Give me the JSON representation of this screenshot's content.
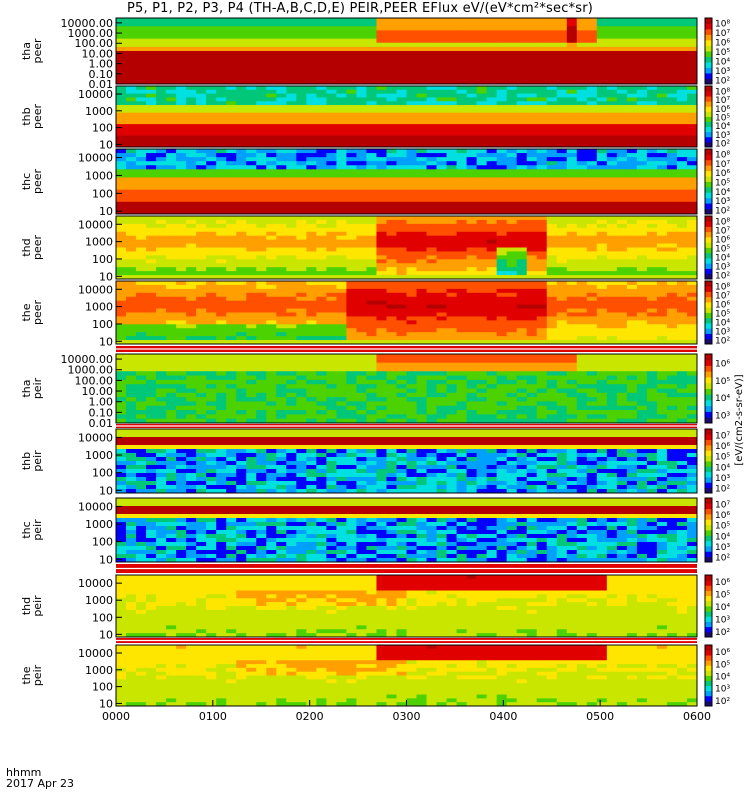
{
  "title": "P5, P1, P2, P3, P4 (TH-A,B,C,D,E) PEIR,PEER EFlux eV/(eV*cm²*sec*sr)",
  "footer": {
    "xlabel_line1": "hhmm",
    "xlabel_line2": "2017 Apr 23"
  },
  "colorbar_title": "[eV/(cm2-s-sr-eV)]",
  "colors": {
    "colormap": [
      "#1a0a6e",
      "#0000ff",
      "#00a0ff",
      "#00e0e0",
      "#00c878",
      "#4cd200",
      "#c8e600",
      "#ffe600",
      "#ffa000",
      "#ff5000",
      "#e00000",
      "#b40000"
    ],
    "frame": "#000000",
    "separator_red": "#e00000"
  },
  "chart_data": {
    "type": "heatmap",
    "x_ticks": [
      "0000",
      "0100",
      "0200",
      "0300",
      "0400",
      "0500",
      "0600"
    ],
    "x_range": [
      0,
      6
    ],
    "x_unit": "hours",
    "panels": [
      {
        "probe": "tha",
        "species": "peer",
        "ylabel": "tha\npeer",
        "yscale": "log",
        "ylim": [
          0.01,
          30000
        ],
        "yticks": [
          "0.01",
          "0.10",
          "1.00",
          "10.00",
          "100.00",
          "1000.00",
          "10000.00"
        ],
        "cb_ticks": [
          "10²",
          "10³",
          "10⁴",
          "10⁵",
          "10⁶",
          "10⁷",
          "10⁸"
        ],
        "scheme": "tha_peer"
      },
      {
        "probe": "thb",
        "species": "peer",
        "ylabel": "thb\npeer",
        "yscale": "log",
        "ylim": [
          7,
          30000
        ],
        "yticks": [
          "10",
          "100",
          "1000",
          "10000"
        ],
        "cb_ticks": [
          "10²",
          "10³",
          "10⁴",
          "10⁵",
          "10⁶",
          "10⁷",
          "10⁸"
        ],
        "scheme": "thb_peer"
      },
      {
        "probe": "thc",
        "species": "peer",
        "ylabel": "thc\npeer",
        "yscale": "log",
        "ylim": [
          7,
          30000
        ],
        "yticks": [
          "10",
          "100",
          "1000",
          "10000"
        ],
        "cb_ticks": [
          "10²",
          "10³",
          "10⁴",
          "10⁵",
          "10⁶",
          "10⁷",
          "10⁸"
        ],
        "scheme": "thc_peer"
      },
      {
        "probe": "thd",
        "species": "peer",
        "ylabel": "thd\npeer",
        "yscale": "log",
        "ylim": [
          7,
          30000
        ],
        "yticks": [
          "10",
          "100",
          "1000",
          "10000"
        ],
        "cb_ticks": [
          "10²",
          "10³",
          "10⁴",
          "10⁵",
          "10⁶",
          "10⁷",
          "10⁸"
        ],
        "scheme": "thd_peer"
      },
      {
        "probe": "the",
        "species": "peer",
        "ylabel": "the\npeer",
        "yscale": "log",
        "ylim": [
          7,
          30000
        ],
        "yticks": [
          "10",
          "100",
          "1000",
          "10000"
        ],
        "cb_ticks": [
          "10²",
          "10³",
          "10⁴",
          "10⁵",
          "10⁶",
          "10⁷",
          "10⁸"
        ],
        "scheme": "the_peer"
      },
      {
        "probe": "tha",
        "species": "peir",
        "ylabel": "tha\npeir",
        "yscale": "log",
        "ylim": [
          0.01,
          30000
        ],
        "yticks": [
          "0.01",
          "0.10",
          "1.00",
          "10.00",
          "100.00",
          "1000.00",
          "10000.00"
        ],
        "cb_ticks": [
          "10³",
          "10⁴",
          "10⁵",
          "10⁶"
        ],
        "scheme": "tha_peir"
      },
      {
        "probe": "thb",
        "species": "peir",
        "ylabel": "thb\npeir",
        "yscale": "log",
        "ylim": [
          7,
          30000
        ],
        "yticks": [
          "10",
          "100",
          "1000",
          "10000"
        ],
        "cb_ticks": [
          "10²",
          "10³",
          "10⁴",
          "10⁵",
          "10⁶",
          "10⁷"
        ],
        "scheme": "thb_peir"
      },
      {
        "probe": "thc",
        "species": "peir",
        "ylabel": "thc\npeir",
        "yscale": "log",
        "ylim": [
          7,
          30000
        ],
        "yticks": [
          "10",
          "100",
          "1000",
          "10000"
        ],
        "cb_ticks": [
          "10²",
          "10³",
          "10⁴",
          "10⁵",
          "10⁶",
          "10⁷"
        ],
        "scheme": "thc_peir"
      },
      {
        "probe": "thd",
        "species": "peir",
        "ylabel": "thd\npeir",
        "yscale": "log",
        "ylim": [
          7,
          30000
        ],
        "yticks": [
          "10",
          "100",
          "1000",
          "10000"
        ],
        "cb_ticks": [
          "10²",
          "10³",
          "10⁴",
          "10⁵",
          "10⁶"
        ],
        "scheme": "thd_peir"
      },
      {
        "probe": "the",
        "species": "peir",
        "ylabel": "the\npeir",
        "yscale": "log",
        "ylim": [
          7,
          30000
        ],
        "yticks": [
          "10",
          "100",
          "1000",
          "10000"
        ],
        "cb_ticks": [
          "10²",
          "10³",
          "10⁴",
          "10⁵",
          "10⁶"
        ],
        "scheme": "the_peir"
      }
    ]
  }
}
